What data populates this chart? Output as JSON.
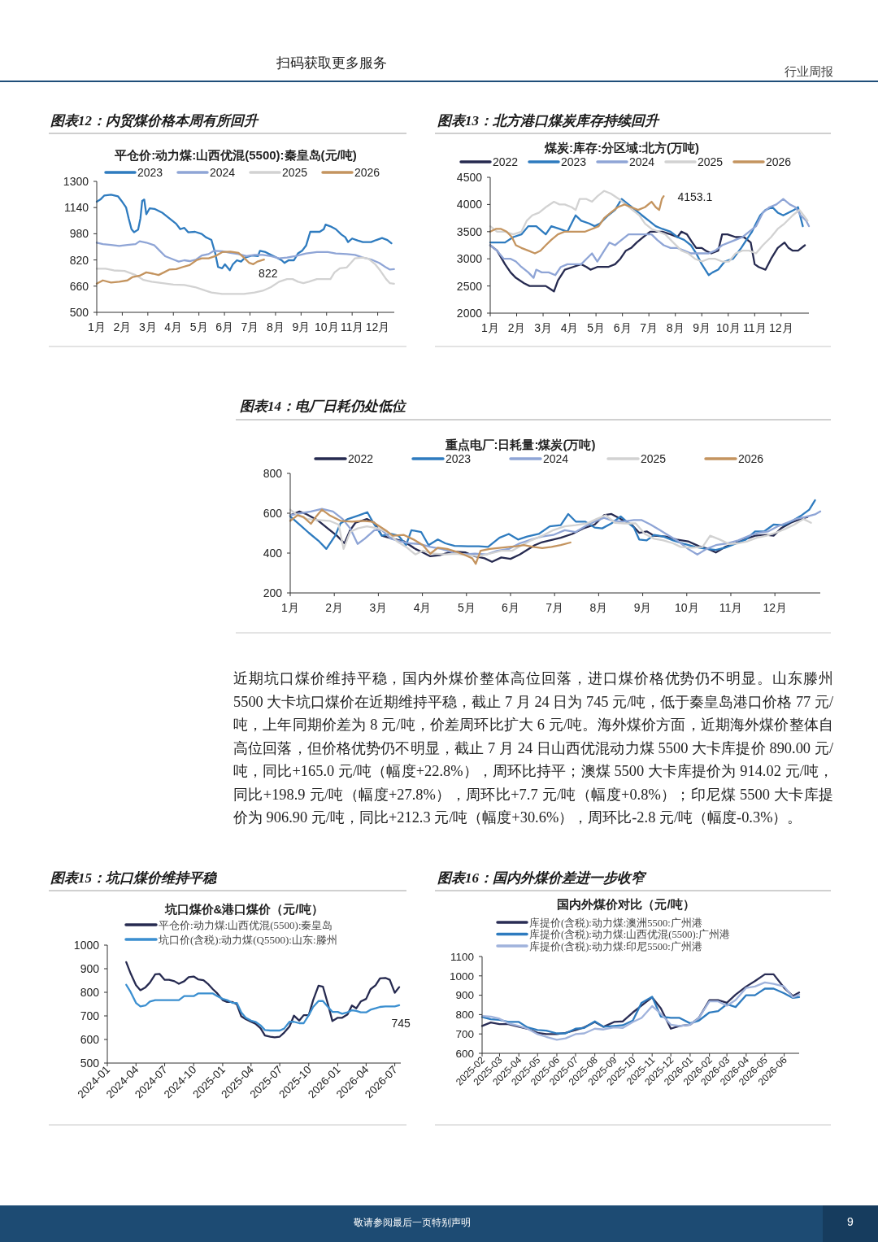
{
  "chart_data": [
    {
      "type": "other",
      "annotations": [
        "扫码获取更多服务",
        "行业周报"
      ]
    },
    {
      "type": "line",
      "title": "图表12：内贸煤价格本周有所回升",
      "subtitle": "平仓价:动力煤:山西优混(5500):秦皇岛(元/吨)",
      "legend": "top",
      "xlim": [
        1,
        12.65
      ],
      "xticks": [
        {
          "value": 1,
          "label": "1月"
        },
        {
          "value": 2,
          "label": "2月"
        },
        {
          "value": 3,
          "label": "3月"
        },
        {
          "value": 4,
          "label": "4月"
        },
        {
          "value": 5,
          "label": "5月"
        },
        {
          "value": 6,
          "label": "6月"
        },
        {
          "value": 7,
          "label": "7月"
        },
        {
          "value": 8,
          "label": "8月"
        },
        {
          "value": 9,
          "label": "9月"
        },
        {
          "value": 10,
          "label": "10月"
        },
        {
          "value": 11,
          "label": "11月"
        },
        {
          "value": 12,
          "label": "12月"
        }
      ],
      "ylim": [
        500,
        1300
      ],
      "yticks": [
        500,
        660,
        820,
        980,
        1140,
        1300
      ],
      "series": [
        {
          "name": "2023",
          "color": "#2e7bbf",
          "x": [
            1.0,
            1.14,
            1.3,
            1.56,
            1.83,
            1.97,
            2.15,
            2.25,
            2.36,
            2.46,
            2.62,
            2.71,
            2.78,
            2.86,
            2.94,
            3.07,
            3.26,
            3.58,
            3.84,
            4.11,
            4.27,
            4.43,
            4.58,
            4.85,
            5.11,
            5.27,
            5.49,
            5.64,
            5.75,
            5.91,
            6.02,
            6.21,
            6.33,
            6.49,
            6.65,
            6.81,
            7.08,
            7.31,
            7.39,
            7.61,
            7.82,
            8.03,
            8.24,
            8.35,
            8.51,
            8.72,
            8.88,
            9.04,
            9.2,
            9.36,
            9.52,
            9.73,
            9.89,
            9.96,
            10.15,
            10.36,
            10.58,
            10.73,
            10.84,
            11.0,
            11.21,
            11.42,
            11.74,
            11.95,
            12.17,
            12.38,
            12.54
          ],
          "values": [
            1176,
            1189,
            1214,
            1219,
            1209,
            1181,
            1140,
            1074,
            1008,
            989,
            1005,
            1074,
            1181,
            1189,
            1099,
            1135,
            1132,
            1107,
            1074,
            1041,
            1008,
            1016,
            989,
            992,
            979,
            959,
            942,
            860,
            777,
            769,
            793,
            757,
            793,
            818,
            810,
            835,
            847,
            843,
            876,
            868,
            851,
            835,
            818,
            802,
            818,
            818,
            860,
            876,
            909,
            992,
            992,
            992,
            1008,
            1036,
            1025,
            1008,
            975,
            959,
            929,
            951,
            939,
            929,
            929,
            942,
            954,
            942,
            922
          ]
        },
        {
          "name": "2024",
          "color": "#8fa5d6",
          "x": [
            1.0,
            1.24,
            1.56,
            1.88,
            2.2,
            2.52,
            2.68,
            2.94,
            3.26,
            3.47,
            3.68,
            4.0,
            4.21,
            4.43,
            4.64,
            4.9,
            5.11,
            5.38,
            5.59,
            5.91,
            6.23,
            6.55,
            6.86,
            7.18,
            7.5,
            7.82,
            8.14,
            8.45,
            8.77,
            9.2,
            9.62,
            10.05,
            10.36,
            10.79,
            11.11,
            11.42,
            11.74,
            12.06,
            12.33,
            12.48,
            12.64
          ],
          "values": [
            926,
            917,
            912,
            906,
            912,
            917,
            934,
            926,
            909,
            876,
            843,
            823,
            810,
            818,
            813,
            823,
            847,
            856,
            876,
            873,
            863,
            856,
            843,
            851,
            851,
            843,
            830,
            835,
            843,
            860,
            868,
            868,
            860,
            856,
            851,
            835,
            823,
            802,
            774,
            761,
            764
          ]
        },
        {
          "name": "2025",
          "color": "#d2d2d2",
          "x": [
            1.0,
            1.35,
            1.67,
            2.09,
            2.52,
            2.83,
            3.15,
            3.58,
            4.0,
            4.43,
            4.85,
            5.17,
            5.49,
            5.91,
            6.33,
            6.76,
            7.18,
            7.5,
            7.82,
            8.14,
            8.45,
            8.67,
            8.88,
            9.09,
            9.3,
            9.62,
            10.15,
            10.31,
            10.52,
            10.79,
            10.95,
            11.11,
            11.42,
            11.64,
            11.9,
            12.11,
            12.33,
            12.48,
            12.64
          ],
          "values": [
            766,
            766,
            756,
            753,
            728,
            698,
            687,
            678,
            670,
            667,
            654,
            637,
            621,
            612,
            612,
            612,
            621,
            632,
            654,
            687,
            703,
            703,
            687,
            678,
            687,
            703,
            703,
            744,
            769,
            774,
            802,
            830,
            835,
            827,
            794,
            753,
            703,
            678,
            675
          ]
        },
        {
          "name": "2026",
          "color": "#c4945f",
          "x": [
            1.0,
            1.24,
            1.56,
            1.88,
            2.2,
            2.41,
            2.68,
            2.94,
            3.21,
            3.42,
            3.63,
            3.84,
            4.11,
            4.37,
            4.64,
            4.9,
            5.11,
            5.38,
            5.64,
            5.91,
            6.23,
            6.55,
            6.76,
            6.97,
            7.13,
            7.29,
            7.55
          ],
          "values": [
            675,
            695,
            682,
            687,
            695,
            716,
            724,
            744,
            736,
            728,
            744,
            761,
            764,
            777,
            789,
            818,
            830,
            830,
            843,
            868,
            871,
            863,
            835,
            802,
            794,
            810,
            822
          ]
        }
      ],
      "annotations": [
        {
          "text": "822",
          "x": 7.55,
          "y": 822
        }
      ]
    },
    {
      "type": "line",
      "title": "图表13：北方港口煤炭库存持续回升",
      "subtitle": "煤炭:库存:分区域:北方(万吨)",
      "legend": "top",
      "xlim": [
        1,
        13.05
      ],
      "xticks": [
        {
          "value": 1,
          "label": "1月"
        },
        {
          "value": 2,
          "label": "2月"
        },
        {
          "value": 3,
          "label": "3月"
        },
        {
          "value": 4,
          "label": "4月"
        },
        {
          "value": 5,
          "label": "5月"
        },
        {
          "value": 6,
          "label": "6月"
        },
        {
          "value": 7,
          "label": "7月"
        },
        {
          "value": 8,
          "label": "8月"
        },
        {
          "value": 9,
          "label": "9月"
        },
        {
          "value": 10,
          "label": "10月"
        },
        {
          "value": 11,
          "label": "11月"
        },
        {
          "value": 12,
          "label": "12月"
        }
      ],
      "ylim": [
        2000,
        4500
      ],
      "yticks": [
        2000,
        2500,
        3000,
        3500,
        4000,
        4500
      ],
      "series": [
        {
          "name": "2022",
          "color": "#262a50",
          "x": [
            1.0,
            1.26,
            1.56,
            1.77,
            1.97,
            2.28,
            2.49,
            2.79,
            3.1,
            3.26,
            3.41,
            3.56,
            3.82,
            4.13,
            4.44,
            4.64,
            4.79,
            5.05,
            5.46,
            5.72,
            5.92,
            6.13,
            6.33,
            6.54,
            6.79,
            7.05,
            7.26,
            7.51,
            7.82,
            8.08,
            8.23,
            8.44,
            8.64,
            8.79,
            9.0,
            9.15,
            9.36,
            9.62,
            9.77,
            9.97,
            10.28,
            10.59,
            10.85,
            11.0,
            11.15,
            11.41,
            11.62,
            11.87,
            12.13,
            12.28,
            12.44,
            12.64,
            12.9
          ],
          "values": [
            3250,
            3150,
            2900,
            2750,
            2650,
            2550,
            2500,
            2500,
            2500,
            2450,
            2400,
            2600,
            2800,
            2850,
            2900,
            2850,
            2800,
            2850,
            2850,
            2900,
            3000,
            3150,
            3200,
            3300,
            3400,
            3500,
            3500,
            3500,
            3450,
            3400,
            3500,
            3450,
            3300,
            3200,
            3200,
            3150,
            3100,
            3150,
            3450,
            3450,
            3400,
            3400,
            3300,
            2900,
            2850,
            2800,
            3000,
            3200,
            3300,
            3200,
            3150,
            3150,
            3250
          ]
        },
        {
          "name": "2023",
          "color": "#2e7bbf",
          "x": [
            1.0,
            1.26,
            1.56,
            1.87,
            2.18,
            2.44,
            2.74,
            3.1,
            3.31,
            3.62,
            3.92,
            4.23,
            4.44,
            4.74,
            4.95,
            5.15,
            5.46,
            5.72,
            5.97,
            6.23,
            6.49,
            6.74,
            7.0,
            7.26,
            7.51,
            7.82,
            8.08,
            8.33,
            8.59,
            8.79,
            9.0,
            9.26,
            9.41,
            9.62,
            9.87,
            10.18,
            10.49,
            10.69,
            10.9,
            11.05,
            11.21,
            11.41,
            11.67,
            11.87,
            12.08,
            12.28,
            12.49,
            12.64,
            12.74,
            12.82
          ],
          "values": [
            3300,
            3300,
            3300,
            3400,
            3450,
            3600,
            3600,
            3450,
            3600,
            3550,
            3500,
            3800,
            3700,
            3650,
            3600,
            3650,
            3800,
            3900,
            4100,
            4000,
            3900,
            3800,
            3700,
            3600,
            3550,
            3500,
            3400,
            3350,
            3250,
            3100,
            2900,
            2700,
            2750,
            2800,
            2950,
            3000,
            3200,
            3350,
            3500,
            3650,
            3800,
            3900,
            3950,
            3850,
            3800,
            3850,
            3900,
            3950,
            3750,
            3600
          ]
        },
        {
          "name": "2024",
          "color": "#8fa5d6",
          "x": [
            1.0,
            1.26,
            1.51,
            1.77,
            1.97,
            2.18,
            2.44,
            2.64,
            2.74,
            2.95,
            3.21,
            3.46,
            3.67,
            3.92,
            4.18,
            4.44,
            4.64,
            4.85,
            5.05,
            5.31,
            5.51,
            5.72,
            5.97,
            6.23,
            6.49,
            6.79,
            7.1,
            7.31,
            7.56,
            7.82,
            8.08,
            8.33,
            8.59,
            8.85,
            9.05,
            9.26,
            9.51,
            9.77,
            10.03,
            10.28,
            10.54,
            10.79,
            11.05,
            11.31,
            11.56,
            11.82,
            12.08,
            12.33,
            12.54,
            12.74,
            12.95,
            13.05
          ],
          "values": [
            3250,
            3150,
            3000,
            3000,
            2950,
            2850,
            2750,
            2650,
            2800,
            2750,
            2750,
            2700,
            2850,
            2900,
            2900,
            2900,
            3000,
            3100,
            2950,
            3150,
            3300,
            3250,
            3350,
            3450,
            3450,
            3450,
            3450,
            3350,
            3250,
            3200,
            3200,
            3150,
            3100,
            3100,
            3100,
            3100,
            3150,
            3250,
            3300,
            3350,
            3400,
            3500,
            3600,
            3850,
            3950,
            4000,
            4100,
            4000,
            3950,
            3800,
            3700,
            3600
          ]
        },
        {
          "name": "2025",
          "color": "#d2d2d2",
          "x": [
            1.0,
            1.26,
            1.56,
            1.87,
            2.18,
            2.38,
            2.59,
            2.85,
            3.1,
            3.41,
            3.62,
            3.82,
            4.08,
            4.23,
            4.38,
            4.64,
            4.85,
            5.05,
            5.31,
            5.56,
            5.87,
            6.13,
            6.38,
            6.64,
            6.85,
            7.1,
            7.36,
            7.62,
            7.92,
            8.23,
            8.49,
            8.74,
            9.0,
            9.26,
            9.51,
            9.77,
            10.03,
            10.28,
            10.54,
            10.79,
            11.05,
            11.31,
            11.62,
            11.87,
            12.13,
            12.44,
            12.69,
            12.85,
            13.0
          ],
          "values": [
            3600,
            3500,
            3500,
            3450,
            3500,
            3700,
            3800,
            3850,
            3950,
            4050,
            4000,
            4000,
            3950,
            3900,
            4100,
            4100,
            4050,
            4150,
            4250,
            4200,
            4100,
            4000,
            3900,
            3800,
            3650,
            3550,
            3500,
            3450,
            3300,
            3150,
            3100,
            3000,
            2950,
            3000,
            3000,
            2950,
            2950,
            3100,
            3150,
            3150,
            3100,
            3250,
            3400,
            3550,
            3650,
            3800,
            3900,
            3800,
            3700
          ]
        },
        {
          "name": "2026",
          "color": "#c4945f",
          "x": [
            1.0,
            1.21,
            1.41,
            1.62,
            1.82,
            1.97,
            2.18,
            2.44,
            2.69,
            2.9,
            3.1,
            3.31,
            3.56,
            3.82,
            4.08,
            4.33,
            4.59,
            4.85,
            5.1,
            5.31,
            5.56,
            5.82,
            6.08,
            6.33,
            6.59,
            6.85,
            7.1,
            7.26,
            7.39,
            7.49,
            7.56
          ],
          "values": [
            3500,
            3550,
            3550,
            3500,
            3400,
            3250,
            3200,
            3150,
            3100,
            3150,
            3250,
            3350,
            3450,
            3500,
            3500,
            3500,
            3500,
            3550,
            3600,
            3750,
            3850,
            3950,
            4000,
            3950,
            3900,
            3950,
            4050,
            3950,
            3900,
            4100,
            4153.1
          ]
        }
      ],
      "annotations": [
        {
          "text": "4153.1",
          "x": 7.56,
          "y": 4153.1
        }
      ]
    },
    {
      "type": "line",
      "title": "图表14：电厂日耗仍处低位",
      "subtitle": "重点电厂:日耗量:煤炭(万吨)",
      "legend": "top",
      "xlim": [
        1,
        13.03
      ],
      "xticks": [
        {
          "value": 1,
          "label": "1月"
        },
        {
          "value": 2,
          "label": "2月"
        },
        {
          "value": 3,
          "label": "3月"
        },
        {
          "value": 4,
          "label": "4月"
        },
        {
          "value": 5,
          "label": "5月"
        },
        {
          "value": 6,
          "label": "6月"
        },
        {
          "value": 7,
          "label": "7月"
        },
        {
          "value": 8,
          "label": "8月"
        },
        {
          "value": 9,
          "label": "9月"
        },
        {
          "value": 10,
          "label": "10月"
        },
        {
          "value": 11,
          "label": "11月"
        },
        {
          "value": 12,
          "label": "12月"
        }
      ],
      "ylim": [
        200,
        800
      ],
      "yticks": [
        200,
        400,
        600,
        800
      ],
      "series": [
        {
          "name": "2022",
          "color": "#262a50",
          "x": [
            1.0,
            1.21,
            1.38,
            1.64,
            1.85,
            2.06,
            2.23,
            2.36,
            2.48,
            2.74,
            2.91,
            3.08,
            3.33,
            3.58,
            3.84,
            4.01,
            4.18,
            4.39,
            4.6,
            4.77,
            4.98,
            5.19,
            5.41,
            5.58,
            5.79,
            6.0,
            6.21,
            6.38,
            6.55,
            6.72,
            6.97,
            7.14,
            7.4,
            7.65,
            7.91,
            8.12,
            8.29,
            8.5,
            8.75,
            8.92,
            9.09,
            9.26,
            9.52,
            9.77,
            10.03,
            10.28,
            10.49,
            10.66,
            10.87,
            11.04,
            11.3,
            11.55,
            11.81,
            11.97,
            12.14,
            12.36,
            12.57,
            12.74
          ],
          "values": [
            590,
            609,
            594,
            562,
            524,
            487,
            449,
            515,
            552,
            571,
            552,
            487,
            472,
            459,
            421,
            403,
            384,
            389,
            403,
            407,
            403,
            384,
            374,
            356,
            378,
            371,
            393,
            416,
            440,
            455,
            468,
            477,
            496,
            524,
            543,
            590,
            596,
            571,
            543,
            502,
            509,
            487,
            483,
            468,
            459,
            434,
            421,
            403,
            431,
            444,
            468,
            487,
            491,
            487,
            524,
            552,
            571,
            581
          ]
        },
        {
          "name": "2023",
          "color": "#2e7bbf",
          "x": [
            1.0,
            1.21,
            1.42,
            1.64,
            1.82,
            2.02,
            2.14,
            2.31,
            2.57,
            2.75,
            2.91,
            3.08,
            3.29,
            3.46,
            3.63,
            3.75,
            3.97,
            4.14,
            4.35,
            4.52,
            4.73,
            5.03,
            5.28,
            5.49,
            5.75,
            5.96,
            6.17,
            6.38,
            6.64,
            6.89,
            7.14,
            7.31,
            7.48,
            7.69,
            7.91,
            8.08,
            8.29,
            8.5,
            8.67,
            8.8,
            8.92,
            9.09,
            9.26,
            9.47,
            9.69,
            9.94,
            10.19,
            10.45,
            10.66,
            10.87,
            11.13,
            11.34,
            11.55,
            11.76,
            11.97,
            12.19,
            12.4,
            12.61,
            12.78,
            12.91
          ],
          "values": [
            584,
            543,
            502,
            462,
            421,
            487,
            549,
            571,
            590,
            605,
            543,
            487,
            496,
            487,
            440,
            515,
            506,
            440,
            468,
            449,
            436,
            434,
            434,
            431,
            477,
            496,
            468,
            483,
            496,
            534,
            540,
            596,
            558,
            558,
            528,
            524,
            549,
            584,
            552,
            528,
            468,
            464,
            491,
            483,
            464,
            446,
            431,
            421,
            416,
            427,
            449,
            468,
            509,
            509,
            543,
            540,
            562,
            590,
            618,
            665
          ]
        },
        {
          "name": "2024",
          "color": "#8fa5d6",
          "x": [
            1.0,
            1.21,
            1.47,
            1.72,
            1.97,
            2.19,
            2.36,
            2.53,
            2.69,
            2.91,
            3.08,
            3.29,
            3.5,
            3.71,
            3.92,
            4.18,
            4.43,
            4.69,
            4.94,
            5.19,
            5.45,
            5.7,
            5.96,
            6.21,
            6.47,
            6.72,
            6.97,
            7.23,
            7.48,
            7.69,
            7.91,
            8.12,
            8.33,
            8.54,
            8.8,
            8.97,
            9.18,
            9.39,
            9.6,
            9.81,
            10.03,
            10.24,
            10.45,
            10.66,
            10.92,
            11.17,
            11.42,
            11.64,
            11.85,
            12.06,
            12.27,
            12.48,
            12.69,
            12.91,
            13.03
          ],
          "values": [
            590,
            599,
            609,
            622,
            609,
            571,
            524,
            446,
            472,
            515,
            515,
            472,
            459,
            449,
            446,
            431,
            421,
            403,
            393,
            397,
            393,
            412,
            421,
            449,
            468,
            483,
            491,
            515,
            506,
            534,
            558,
            577,
            562,
            558,
            566,
            566,
            543,
            515,
            487,
            459,
            421,
            393,
            421,
            440,
            449,
            464,
            487,
            502,
            509,
            534,
            552,
            571,
            581,
            594,
            609
          ]
        },
        {
          "name": "2025",
          "color": "#d2d2d2",
          "x": [
            1.0,
            1.17,
            1.38,
            1.64,
            1.89,
            2.1,
            2.21,
            2.36,
            2.53,
            2.74,
            2.99,
            3.2,
            3.42,
            3.63,
            3.84,
            4.01,
            4.26,
            4.52,
            4.77,
            5.03,
            5.28,
            5.53,
            5.79,
            6.04,
            6.21,
            6.47,
            6.72,
            6.97,
            7.23,
            7.48,
            7.74,
            7.95,
            8.16,
            8.37,
            8.58,
            8.84,
            9.05,
            9.26,
            9.47,
            9.69,
            9.86,
            10.11,
            10.36,
            10.53,
            10.75,
            10.96,
            11.17,
            11.38,
            11.59,
            11.81,
            12.02,
            12.23,
            12.44,
            12.65,
            12.82
          ],
          "values": [
            618,
            590,
            571,
            566,
            562,
            543,
            421,
            506,
            524,
            534,
            524,
            506,
            459,
            431,
            393,
            412,
            397,
            393,
            397,
            389,
            384,
            397,
            412,
            412,
            434,
            464,
            487,
            515,
            534,
            540,
            549,
            571,
            590,
            552,
            549,
            549,
            496,
            472,
            464,
            449,
            431,
            427,
            431,
            487,
            468,
            446,
            449,
            459,
            477,
            487,
            502,
            521,
            543,
            571,
            552
          ]
        },
        {
          "name": "2026",
          "color": "#c4945f",
          "x": [
            1.0,
            1.17,
            1.3,
            1.47,
            1.59,
            1.72,
            1.89,
            2.14,
            2.4,
            2.65,
            2.86,
            3.03,
            3.2,
            3.33,
            3.58,
            3.8,
            4.01,
            4.18,
            4.35,
            4.56,
            4.77,
            4.98,
            5.13,
            5.21,
            5.32,
            5.53,
            5.79,
            5.97,
            6.13,
            6.3,
            6.51,
            6.72,
            6.93,
            7.14,
            7.36
          ],
          "values": [
            562,
            590,
            581,
            547,
            584,
            618,
            590,
            562,
            558,
            562,
            558,
            534,
            509,
            487,
            491,
            468,
            440,
            397,
            427,
            421,
            407,
            389,
            374,
            346,
            412,
            421,
            427,
            431,
            434,
            440,
            431,
            425,
            431,
            440,
            453
          ]
        }
      ]
    },
    {
      "type": "other",
      "annotations": [
        "近期坑口煤价维持平稳，国内外煤价整体高位回落，进口煤价格优势仍不明显。山东滕州5500 大卡坑口煤价在近期维持平稳，截止 7 月 24 日为 745 元/吨，低于秦皇岛港口价格 77 元/吨，上年同期价差为 8 元/吨，价差周环比扩大 6 元/吨。海外煤价方面，近期海外煤价整体自高位回落，但价格优势仍不明显，截止 7 月 24 日山西优混动力煤 5500 大卡库提价 890.00 元/吨，同比+165.0 元/吨（幅度+22.8%），周环比持平；澳煤 5500 大卡库提价为 914.02 元/吨，同比+198.9 元/吨（幅度+27.8%），周环比+7.7 元/吨（幅度+0.8%）；印尼煤 5500 大卡库提价为 906.90 元/吨，同比+212.3 元/吨（幅度+30.6%），周环比-2.8 元/吨（幅度-0.3%）。"
      ]
    },
    {
      "type": "line",
      "title": "图表15：坑口煤价维持平稳",
      "subtitle": "坑口煤价&港口煤价（元/吨）",
      "legend": "top",
      "xlim": [
        "2024-01-01",
        "2026-07-20"
      ],
      "xticks": [
        "2024-01",
        "2024-04",
        "2024-07",
        "2024-10",
        "2025-01",
        "2025-04",
        "2025-07",
        "2025-10",
        "2026-01",
        "2026-04",
        "2026-07"
      ],
      "ylim": [
        500,
        1000
      ],
      "yticks": [
        500,
        600,
        700,
        800,
        900,
        1000
      ],
      "x": [
        "2024-03-01",
        "2024-03-15",
        "2024-04-01",
        "2024-04-15",
        "2024-05-01",
        "2024-05-15",
        "2024-06-01",
        "2024-06-15",
        "2024-07-01",
        "2024-07-15",
        "2024-08-01",
        "2024-08-15",
        "2024-09-01",
        "2024-09-15",
        "2024-10-01",
        "2024-10-15",
        "2024-11-01",
        "2024-11-15",
        "2024-12-01",
        "2024-12-15",
        "2025-01-01",
        "2025-01-15",
        "2025-02-01",
        "2025-02-15",
        "2025-03-01",
        "2025-03-15",
        "2025-04-01",
        "2025-04-15",
        "2025-05-01",
        "2025-05-15",
        "2025-06-01",
        "2025-06-15",
        "2025-07-01",
        "2025-07-15",
        "2025-08-01",
        "2025-08-15",
        "2025-09-01",
        "2025-09-15",
        "2025-10-01",
        "2025-10-15",
        "2025-11-01",
        "2025-11-15",
        "2025-12-01",
        "2025-12-15",
        "2026-01-01",
        "2026-01-15",
        "2026-02-01",
        "2026-02-15",
        "2026-03-01",
        "2026-03-15",
        "2026-04-01",
        "2026-04-15",
        "2026-05-01",
        "2026-05-15",
        "2026-06-01",
        "2026-06-15",
        "2026-07-01",
        "2026-07-15"
      ],
      "series": [
        {
          "name": "平仓价:动力煤:山西优混(5500):秦皇岛",
          "color": "#262a50",
          "values": [
            928,
            880,
            830,
            809,
            821,
            841,
            876,
            878,
            853,
            853,
            847,
            836,
            847,
            864,
            867,
            855,
            851,
            836,
            813,
            795,
            767,
            759,
            759,
            749,
            698,
            686,
            675,
            667,
            648,
            617,
            612,
            609,
            612,
            629,
            655,
            701,
            680,
            703,
            703,
            767,
            828,
            824,
            749,
            678,
            692,
            692,
            706,
            744,
            732,
            761,
            772,
            813,
            830,
            859,
            861,
            853,
            798,
            822
          ]
        },
        {
          "name": "坑口价(含税):动力煤(Q5500):山东:滕州",
          "color": "#3b8fd0",
          "values": [
            832,
            801,
            755,
            740,
            744,
            761,
            767,
            767,
            767,
            767,
            767,
            767,
            784,
            784,
            784,
            795,
            795,
            795,
            795,
            784,
            772,
            767,
            755,
            755,
            715,
            692,
            680,
            675,
            660,
            640,
            638,
            638,
            638,
            646,
            675,
            675,
            669,
            669,
            703,
            738,
            763,
            763,
            738,
            717,
            717,
            709,
            715,
            724,
            721,
            715,
            715,
            726,
            732,
            738,
            740,
            740,
            740,
            745
          ]
        }
      ],
      "annotations": [
        {
          "text": "745",
          "x": "2026-07-15",
          "y": 745
        }
      ]
    },
    {
      "type": "line",
      "title": "图表16：国内外煤价差进一步收窄",
      "subtitle": "国内外煤价对比（元/吨）",
      "legend": "top",
      "xlim": [
        "2025-02-01",
        "2026-06-25"
      ],
      "xticks": [
        "2025-02",
        "2025-03",
        "2025-04",
        "2025-05",
        "2025-06",
        "2025-07",
        "2025-08",
        "2025-09",
        "2025-10",
        "2025-11",
        "2025-12",
        "2026-01",
        "2026-02",
        "2026-03",
        "2026-04",
        "2026-05",
        "2026-06"
      ],
      "ylim": [
        600,
        1100
      ],
      "yticks": [
        600,
        700,
        800,
        900,
        1000,
        1100
      ],
      "x": [
        "2025-02-01",
        "2025-02-15",
        "2025-03-01",
        "2025-03-15",
        "2025-04-01",
        "2025-04-15",
        "2025-05-01",
        "2025-05-15",
        "2025-06-01",
        "2025-06-15",
        "2025-07-01",
        "2025-07-15",
        "2025-08-01",
        "2025-08-15",
        "2025-09-01",
        "2025-09-15",
        "2025-10-01",
        "2025-10-15",
        "2025-11-01",
        "2025-11-15",
        "2025-12-01",
        "2025-12-15",
        "2026-01-01",
        "2026-01-15",
        "2026-02-01",
        "2026-02-15",
        "2026-03-01",
        "2026-03-15",
        "2026-04-01",
        "2026-04-15",
        "2026-05-01",
        "2026-05-15",
        "2026-06-01",
        "2026-06-15",
        "2026-06-25"
      ],
      "series": [
        {
          "name": "库提价(含税):动力煤:澳洲5500:广州港",
          "color": "#2a2d55",
          "values": [
            741,
            759,
            751,
            751,
            737,
            727,
            706,
            699,
            699,
            706,
            720,
            734,
            762,
            737,
            762,
            765,
            811,
            846,
            889,
            832,
            727,
            741,
            748,
            783,
            875,
            875,
            861,
            903,
            945,
            973,
            1008,
            1008,
            938,
            896,
            914
          ]
        },
        {
          "name": "库提价(含税):动力煤:山西优混(5500):广州港",
          "color": "#2e7bbf",
          "values": [
            787,
            776,
            773,
            762,
            762,
            734,
            720,
            717,
            703,
            703,
            727,
            731,
            765,
            737,
            741,
            745,
            769,
            861,
            892,
            790,
            783,
            783,
            755,
            769,
            811,
            818,
            854,
            839,
            900,
            900,
            934,
            934,
            910,
            886,
            890
          ]
        },
        {
          "name": "库提价(含税):动力煤:印尼5500:广州港",
          "color": "#a0b3dc",
          "values": [
            793,
            790,
            779,
            755,
            741,
            727,
            699,
            685,
            670,
            677,
            699,
            703,
            727,
            723,
            734,
            731,
            762,
            783,
            844,
            804,
            748,
            741,
            748,
            783,
            868,
            868,
            846,
            875,
            938,
            945,
            966,
            959,
            945,
            889,
            903
          ]
        }
      ]
    },
    {
      "type": "other",
      "annotations": [
        "敬请参阅最后一页特别声明",
        "9"
      ]
    }
  ]
}
